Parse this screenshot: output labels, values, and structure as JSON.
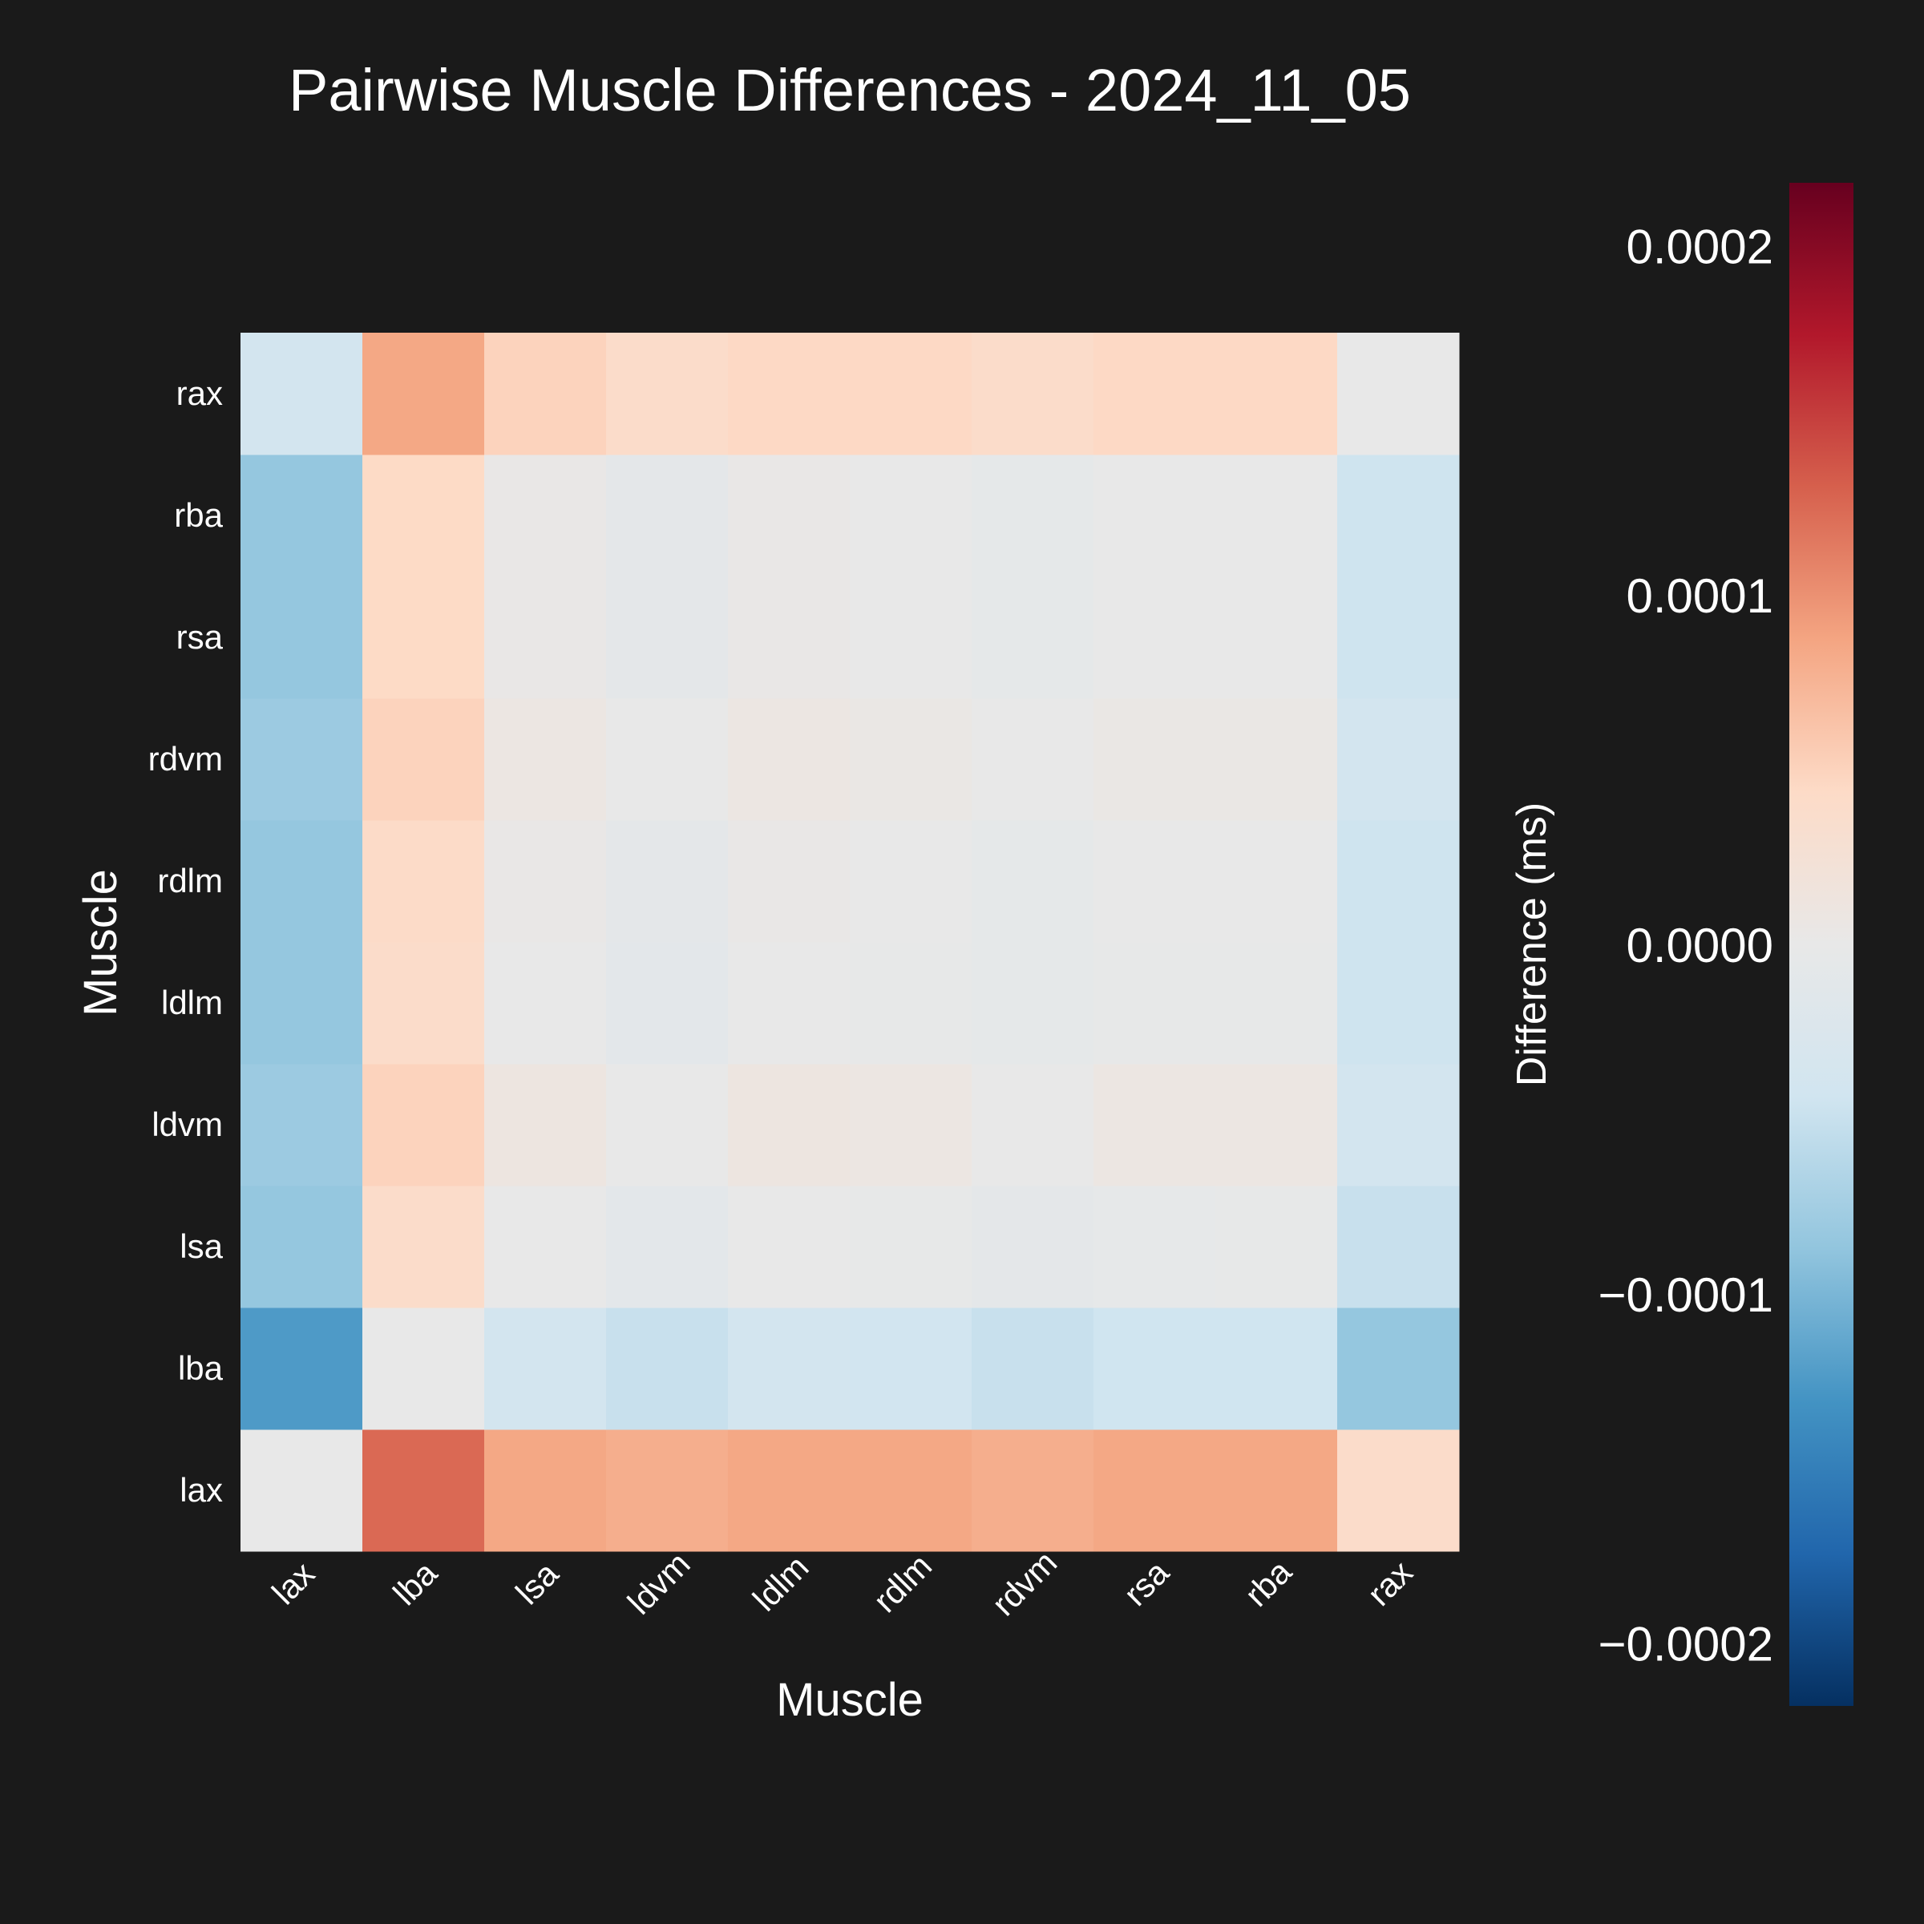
{
  "chart_data": {
    "type": "heatmap",
    "title": "Pairwise Muscle Differences - 2024_11_05",
    "xlabel": "Muscle",
    "ylabel": "Muscle",
    "x_categories": [
      "lax",
      "lba",
      "lsa",
      "ldvm",
      "ldlm",
      "rdlm",
      "rdvm",
      "rsa",
      "rba",
      "rax"
    ],
    "y_categories": [
      "lax",
      "lba",
      "lsa",
      "ldvm",
      "ldlm",
      "rdlm",
      "rdvm",
      "rsa",
      "rba",
      "rax"
    ],
    "values": [
      [
        0.0,
        0.000125,
        8.5e-05,
        8e-05,
        8.5e-05,
        8.5e-05,
        8e-05,
        8.5e-05,
        8.5e-05,
        4e-05
      ],
      [
        -0.000125,
        0.0,
        -4e-05,
        -5e-05,
        -4e-05,
        -4.2e-05,
        -5e-05,
        -4.4e-05,
        -4.4e-05,
        -8.5e-05
      ],
      [
        -8.5e-05,
        4e-05,
        0.0,
        -1e-05,
        0.0,
        -2e-06,
        -8e-06,
        -3e-06,
        -2e-06,
        -5e-05
      ],
      [
        -8e-05,
        5e-05,
        1e-05,
        0.0,
        1e-05,
        8e-06,
        0.0,
        8e-06,
        8e-06,
        -4e-05
      ],
      [
        -8.5e-05,
        4e-05,
        0.0,
        -1e-05,
        0.0,
        -2e-06,
        -5e-06,
        -2e-06,
        -2e-06,
        -4.5e-05
      ],
      [
        -8.5e-05,
        4.2e-05,
        2e-06,
        -8e-06,
        2e-06,
        0.0,
        -5e-06,
        0.0,
        0.0,
        -4.5e-05
      ],
      [
        -8e-05,
        5e-05,
        8e-06,
        0.0,
        8e-06,
        5e-06,
        0.0,
        5e-06,
        5e-06,
        -4e-05
      ],
      [
        -8.5e-05,
        4.4e-05,
        3e-06,
        -8e-06,
        2e-06,
        0.0,
        -5e-06,
        0.0,
        0.0,
        -4.5e-05
      ],
      [
        -8.5e-05,
        4.4e-05,
        2e-06,
        -8e-06,
        2e-06,
        0.0,
        -5e-06,
        0.0,
        0.0,
        -4.5e-05
      ],
      [
        -4e-05,
        8.5e-05,
        5e-05,
        4e-05,
        4.5e-05,
        4.5e-05,
        4e-05,
        4.5e-05,
        4.5e-05,
        0.0
      ]
    ],
    "colorbar": {
      "label": "Difference (ms)",
      "vmin": -0.000218,
      "vmax": 0.000218,
      "ticks": [
        0.0002,
        0.0001,
        0.0,
        -0.0001,
        -0.0002
      ],
      "tick_labels": [
        "0.0002",
        "0.0001",
        "0.0000",
        "−0.0001",
        "−0.0002"
      ],
      "colormap": [
        "#053061",
        "#2166ac",
        "#4393c3",
        "#92c5de",
        "#d1e5f0",
        "#e8e8e8",
        "#fddbc7",
        "#f4a582",
        "#d6604d",
        "#b2182b",
        "#67001f"
      ]
    },
    "grid": false
  }
}
